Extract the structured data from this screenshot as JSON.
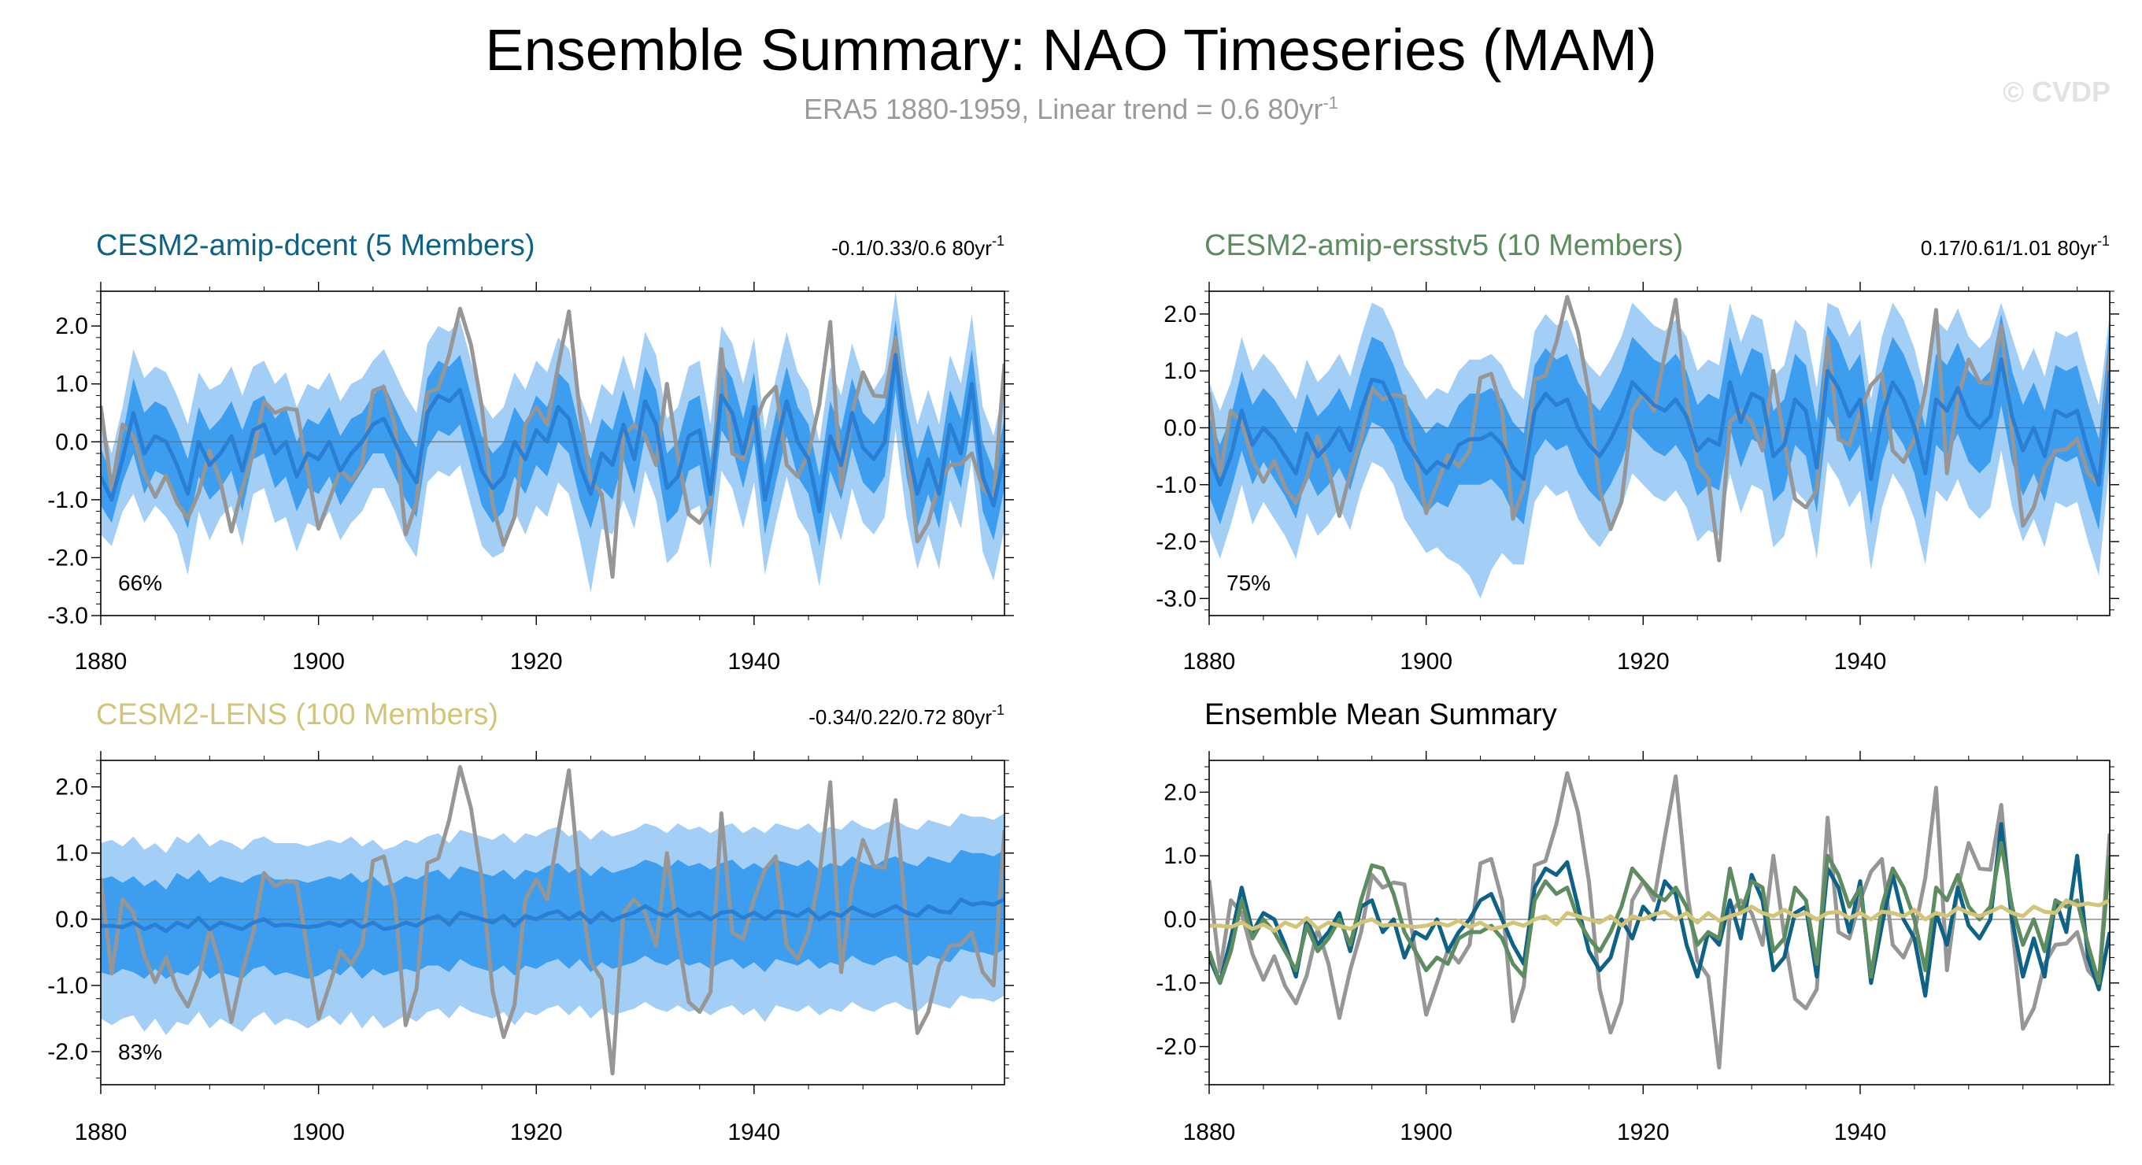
{
  "page": {
    "title": "Ensemble Summary: NAO Timeseries (MAM)",
    "subtitle_main": "ERA5 1880-1959, Linear trend = 0.6 80yr",
    "subtitle_exp": "-1",
    "watermark": "© CVDP"
  },
  "colors": {
    "band_outer": "#a3cef6",
    "band_inner": "#3d9ef0",
    "ens_mean": "#2a7fd4",
    "obs": "#969696",
    "dcent": "#0e6286",
    "ersstv5": "#5c8c60",
    "lens": "#d2c57a"
  },
  "chart_data": [
    {
      "id": "dcent",
      "type": "line",
      "title": "CESM2-amip-dcent (5 Members)",
      "title_color": "#0e6286",
      "trend_range": "-0.1/0.33/0.6 80yr",
      "trend_exp": "-1",
      "percent": "66%",
      "xlim": [
        1880,
        1959
      ],
      "ylim": [
        -3,
        2.6
      ],
      "yticks": [
        -3,
        -2,
        -1,
        0,
        1,
        2
      ],
      "ytick_labels": [
        "-3.0",
        "-2.0",
        "-1.0",
        "0.0",
        "1.0",
        "2.0"
      ],
      "xticks": [
        1880,
        1900,
        1920,
        1940
      ],
      "xtick_labels": [
        "1880",
        "1900",
        "1920",
        "1940"
      ]
    },
    {
      "id": "ersstv5",
      "type": "line",
      "title": "CESM2-amip-ersstv5 (10 Members)",
      "title_color": "#5c8c60",
      "trend_range": "0.17/0.61/1.01 80yr",
      "trend_exp": "-1",
      "percent": "75%",
      "xlim": [
        1880,
        1959
      ],
      "ylim": [
        -3.3,
        2.4
      ],
      "yticks": [
        -3,
        -2,
        -1,
        0,
        1,
        2
      ],
      "ytick_labels": [
        "-3.0",
        "-2.0",
        "-1.0",
        "0.0",
        "1.0",
        "2.0"
      ],
      "xticks": [
        1880,
        1900,
        1920,
        1940
      ],
      "xtick_labels": [
        "1880",
        "1900",
        "1920",
        "1940"
      ]
    },
    {
      "id": "lens",
      "type": "line",
      "title": "CESM2-LENS (100 Members)",
      "title_color": "#d2c57a",
      "trend_range": "-0.34/0.22/0.72 80yr",
      "trend_exp": "-1",
      "percent": "83%",
      "xlim": [
        1880,
        1959
      ],
      "ylim": [
        -2.5,
        2.4
      ],
      "yticks": [
        -2,
        -1,
        0,
        1,
        2
      ],
      "ytick_labels": [
        "-2.0",
        "-1.0",
        "0.0",
        "1.0",
        "2.0"
      ],
      "xticks": [
        1880,
        1900,
        1920,
        1940
      ],
      "xtick_labels": [
        "1880",
        "1900",
        "1920",
        "1940"
      ]
    },
    {
      "id": "summary",
      "type": "line",
      "title": "Ensemble Mean Summary",
      "title_color": "#000000",
      "trend_range": "",
      "trend_exp": "",
      "percent": "",
      "xlim": [
        1880,
        1959
      ],
      "ylim": [
        -2.6,
        2.5
      ],
      "yticks": [
        -2,
        -1,
        0,
        1,
        2
      ],
      "ytick_labels": [
        "-2.0",
        "-1.0",
        "0.0",
        "1.0",
        "2.0"
      ],
      "xticks": [
        1880,
        1900,
        1920,
        1940
      ],
      "xtick_labels": [
        "1880",
        "1900",
        "1920",
        "1940"
      ]
    }
  ],
  "series": {
    "obs": [
      0.62,
      -0.82,
      0.3,
      0.1,
      -0.55,
      -0.95,
      -0.58,
      -1.05,
      -1.32,
      -0.88,
      -0.15,
      -0.7,
      -1.55,
      -0.8,
      -0.2,
      0.7,
      0.5,
      0.58,
      0.55,
      -0.5,
      -1.5,
      -1.0,
      -0.48,
      -0.68,
      -0.4,
      0.88,
      0.95,
      0.3,
      -1.6,
      -1.05,
      0.85,
      0.92,
      1.5,
      2.3,
      1.68,
      0.6,
      -1.1,
      -1.78,
      -1.3,
      0.3,
      0.6,
      0.3,
      1.3,
      2.25,
      0.5,
      -0.65,
      -0.9,
      -2.33,
      0.1,
      0.3,
      0.1,
      -0.4,
      1.0,
      -0.25,
      -1.25,
      -1.4,
      -1.1,
      1.6,
      -0.2,
      -0.3,
      0.3,
      0.75,
      0.95,
      -0.4,
      -0.6,
      -0.2,
      0.65,
      2.07,
      -0.8,
      0.5,
      1.2,
      0.8,
      0.78,
      1.8,
      -0.1,
      -1.72,
      -1.4,
      -0.7,
      -0.4,
      -0.38,
      -0.2,
      -0.8,
      -1.0,
      1.35
    ],
    "dcent_mean": [
      -0.6,
      -1.0,
      -0.3,
      0.5,
      -0.2,
      0.1,
      0.0,
      -0.4,
      -0.9,
      0.0,
      -0.4,
      -0.2,
      0.1,
      -0.5,
      0.2,
      0.3,
      -0.2,
      0.0,
      -0.6,
      -0.2,
      -0.3,
      0.0,
      -0.5,
      -0.2,
      0.0,
      0.3,
      0.4,
      0.0,
      -0.4,
      -0.7,
      0.5,
      0.8,
      0.7,
      0.9,
      0.2,
      -0.5,
      -0.8,
      -0.6,
      0.0,
      -0.3,
      0.2,
      0.0,
      0.6,
      0.4,
      -0.4,
      -0.9,
      -0.2,
      -0.4,
      0.3,
      -0.3,
      0.7,
      0.3,
      -0.8,
      -0.6,
      0.1,
      0.2,
      -0.9,
      0.8,
      0.5,
      -0.2,
      0.6,
      -1.0,
      -0.1,
      0.7,
      0.0,
      -0.3,
      -1.2,
      0.1,
      -0.4,
      0.5,
      -0.1,
      -0.3,
      0.0,
      1.5,
      0.0,
      -0.9,
      -0.3,
      -0.9,
      0.3,
      -0.2,
      1.0,
      -0.6,
      -1.1,
      -0.2
    ],
    "dcent_inner_lo": [
      -1.1,
      -1.4,
      -0.7,
      -0.2,
      -0.9,
      -0.5,
      -0.6,
      -1.0,
      -1.5,
      -0.6,
      -1.0,
      -0.8,
      -0.5,
      -1.2,
      -0.3,
      -0.2,
      -0.8,
      -0.6,
      -1.2,
      -0.8,
      -0.9,
      -0.6,
      -1.1,
      -0.8,
      -0.5,
      -0.2,
      -0.2,
      -0.6,
      -1.0,
      -1.3,
      -0.1,
      0.2,
      0.1,
      0.3,
      -0.4,
      -1.1,
      -1.4,
      -1.2,
      -0.6,
      -0.9,
      -0.4,
      -0.6,
      0.0,
      -0.2,
      -1.0,
      -1.5,
      -0.8,
      -1.0,
      -0.3,
      -0.9,
      0.1,
      -0.3,
      -1.4,
      -1.2,
      -0.5,
      -0.4,
      -1.5,
      0.2,
      -0.1,
      -0.8,
      0.0,
      -1.6,
      -0.7,
      0.1,
      -0.6,
      -0.9,
      -1.8,
      -0.5,
      -1.0,
      -0.1,
      -0.7,
      -0.9,
      -0.6,
      0.9,
      -0.6,
      -1.5,
      -0.9,
      -1.5,
      -0.3,
      -0.8,
      0.4,
      -1.2,
      -1.7,
      -0.8
    ],
    "dcent_inner_hi": [
      -0.1,
      -0.6,
      0.1,
      1.1,
      0.5,
      0.7,
      0.6,
      0.2,
      -0.3,
      0.6,
      0.2,
      0.4,
      0.7,
      0.2,
      0.7,
      0.8,
      0.4,
      0.6,
      0.0,
      0.4,
      0.3,
      0.6,
      0.1,
      0.4,
      0.5,
      0.8,
      1.0,
      0.6,
      0.2,
      -0.1,
      1.1,
      1.4,
      1.3,
      1.5,
      0.8,
      0.1,
      -0.2,
      0.0,
      0.6,
      0.3,
      0.8,
      0.6,
      1.2,
      1.0,
      0.2,
      -0.3,
      0.4,
      0.2,
      0.9,
      0.3,
      1.3,
      0.9,
      -0.2,
      0.0,
      0.7,
      0.8,
      -0.3,
      1.4,
      1.1,
      0.4,
      1.2,
      -0.4,
      0.5,
      1.3,
      0.6,
      0.3,
      -0.6,
      0.7,
      0.2,
      1.1,
      0.5,
      0.3,
      0.6,
      2.1,
      0.6,
      -0.3,
      0.3,
      -0.3,
      0.9,
      0.4,
      1.6,
      0.0,
      -0.5,
      0.4
    ],
    "dcent_outer_lo": [
      -1.6,
      -1.8,
      -1.2,
      -0.9,
      -1.4,
      -1.1,
      -1.3,
      -1.6,
      -2.3,
      -1.2,
      -1.7,
      -1.3,
      -1.1,
      -1.8,
      -0.9,
      -0.8,
      -1.4,
      -1.3,
      -1.9,
      -1.4,
      -1.5,
      -1.2,
      -1.7,
      -1.4,
      -1.2,
      -0.8,
      -0.8,
      -1.2,
      -1.7,
      -2.0,
      -0.7,
      -0.5,
      -0.6,
      -0.4,
      -1.1,
      -1.8,
      -2.0,
      -1.9,
      -1.2,
      -1.6,
      -1.1,
      -1.3,
      -0.7,
      -0.9,
      -1.7,
      -2.6,
      -1.5,
      -1.6,
      -1.0,
      -1.5,
      -0.5,
      -1.0,
      -2.1,
      -1.9,
      -1.2,
      -1.1,
      -2.2,
      -0.5,
      -0.8,
      -1.5,
      -0.7,
      -2.3,
      -1.4,
      -0.6,
      -1.3,
      -1.6,
      -2.5,
      -1.2,
      -1.7,
      -0.8,
      -1.4,
      -1.6,
      -1.3,
      0.2,
      -1.3,
      -2.2,
      -1.6,
      -2.2,
      -1.0,
      -1.5,
      -0.3,
      -1.9,
      -2.4,
      -1.5
    ],
    "dcent_outer_hi": [
      0.4,
      -0.2,
      0.6,
      1.6,
      1.1,
      1.3,
      1.2,
      0.8,
      0.3,
      1.2,
      0.9,
      1.0,
      1.3,
      0.8,
      1.3,
      1.4,
      1.0,
      1.2,
      0.6,
      1.0,
      0.9,
      1.2,
      0.7,
      1.0,
      1.1,
      1.4,
      1.6,
      1.2,
      0.8,
      0.5,
      1.7,
      2.0,
      1.9,
      2.1,
      1.4,
      0.7,
      0.4,
      0.6,
      1.2,
      0.9,
      1.4,
      1.2,
      1.8,
      1.6,
      0.8,
      0.3,
      1.0,
      0.8,
      1.5,
      0.9,
      1.9,
      1.5,
      0.4,
      0.6,
      1.3,
      1.4,
      0.3,
      2.0,
      1.7,
      1.0,
      1.8,
      0.2,
      1.1,
      1.9,
      1.2,
      0.9,
      0.0,
      1.3,
      0.8,
      1.7,
      1.1,
      0.9,
      1.2,
      2.6,
      1.2,
      0.3,
      0.9,
      0.3,
      1.5,
      1.0,
      2.2,
      0.6,
      0.1,
      1.0
    ],
    "ersstv5_mean": [
      -0.5,
      -1.0,
      -0.5,
      0.3,
      -0.3,
      0.0,
      -0.2,
      -0.5,
      -0.8,
      -0.1,
      -0.5,
      -0.3,
      0.0,
      -0.4,
      0.3,
      0.85,
      0.8,
      0.4,
      -0.2,
      -0.5,
      -0.8,
      -0.6,
      -0.7,
      -0.3,
      -0.2,
      -0.2,
      -0.1,
      -0.3,
      -0.7,
      -0.9,
      0.3,
      0.6,
      0.4,
      0.5,
      0.0,
      -0.3,
      -0.5,
      -0.2,
      0.2,
      0.8,
      0.6,
      0.4,
      0.3,
      0.5,
      0.2,
      -0.4,
      -0.2,
      -0.3,
      0.8,
      0.1,
      0.6,
      0.5,
      -0.5,
      -0.3,
      0.5,
      0.3,
      -0.7,
      1.0,
      0.7,
      0.2,
      0.5,
      -0.9,
      0.2,
      0.8,
      0.5,
      0.0,
      -0.8,
      0.5,
      0.3,
      0.7,
      0.2,
      0.0,
      0.2,
      1.2,
      0.2,
      -0.4,
      0.0,
      -0.5,
      0.3,
      0.2,
      0.3,
      -0.4,
      -1.0,
      1.0
    ],
    "ersstv5_inner_lo": [
      -1.2,
      -1.7,
      -1.1,
      -0.4,
      -1.0,
      -0.6,
      -0.9,
      -1.2,
      -1.6,
      -0.8,
      -1.2,
      -1.0,
      -0.7,
      -1.1,
      -0.4,
      0.1,
      0.0,
      -0.3,
      -0.9,
      -1.2,
      -1.5,
      -1.3,
      -1.4,
      -1.0,
      -1.0,
      -1.0,
      -0.9,
      -1.1,
      -1.5,
      -1.7,
      -0.5,
      -0.2,
      -0.4,
      -0.3,
      -0.8,
      -1.1,
      -1.3,
      -1.0,
      -0.6,
      0.0,
      -0.2,
      -0.4,
      -0.5,
      -0.3,
      -0.6,
      -1.2,
      -1.0,
      -1.1,
      0.0,
      -0.7,
      -0.2,
      -0.3,
      -1.3,
      -1.1,
      -0.3,
      -0.5,
      -1.5,
      0.2,
      -0.1,
      -0.6,
      -0.3,
      -1.7,
      -0.6,
      0.0,
      -0.3,
      -0.8,
      -1.6,
      -0.3,
      -0.5,
      -0.1,
      -0.6,
      -0.8,
      -0.6,
      0.4,
      -0.6,
      -1.2,
      -0.8,
      -1.3,
      -0.5,
      -0.6,
      -0.5,
      -1.2,
      -1.8,
      0.2
    ],
    "ersstv5_inner_hi": [
      0.2,
      -0.3,
      0.2,
      1.0,
      0.4,
      0.7,
      0.5,
      0.2,
      -0.1,
      0.6,
      0.2,
      0.4,
      0.7,
      0.3,
      1.0,
      1.6,
      1.5,
      1.1,
      0.5,
      0.2,
      -0.1,
      0.1,
      0.0,
      0.4,
      0.6,
      0.6,
      0.7,
      0.5,
      0.1,
      -0.1,
      1.1,
      1.4,
      1.2,
      1.3,
      0.8,
      0.5,
      0.3,
      0.6,
      1.0,
      1.6,
      1.4,
      1.2,
      1.1,
      1.3,
      1.0,
      0.4,
      0.6,
      0.5,
      1.6,
      0.9,
      1.4,
      1.3,
      0.3,
      0.5,
      1.3,
      1.1,
      0.1,
      1.8,
      1.5,
      1.0,
      1.3,
      -0.1,
      1.0,
      1.6,
      1.3,
      0.8,
      0.0,
      1.3,
      1.1,
      1.5,
      1.0,
      0.8,
      1.0,
      2.0,
      1.0,
      0.4,
      0.8,
      0.3,
      1.1,
      1.0,
      1.1,
      0.4,
      -0.2,
      1.8
    ],
    "ersstv5_outer_lo": [
      -1.8,
      -2.3,
      -1.7,
      -1.0,
      -1.7,
      -1.3,
      -1.6,
      -1.9,
      -2.3,
      -1.5,
      -1.9,
      -1.7,
      -1.4,
      -1.8,
      -1.1,
      -0.6,
      -0.7,
      -1.0,
      -1.6,
      -1.9,
      -2.2,
      -2.1,
      -2.3,
      -2.4,
      -2.6,
      -3.0,
      -2.5,
      -2.2,
      -2.4,
      -2.4,
      -1.3,
      -1.0,
      -1.2,
      -1.1,
      -1.6,
      -1.9,
      -2.1,
      -1.8,
      -1.4,
      -0.8,
      -1.0,
      -1.2,
      -1.3,
      -1.1,
      -1.4,
      -2.0,
      -1.8,
      -1.9,
      -0.8,
      -1.5,
      -1.0,
      -1.1,
      -2.1,
      -1.9,
      -1.1,
      -1.3,
      -2.3,
      -0.6,
      -0.9,
      -1.4,
      -1.1,
      -2.5,
      -1.4,
      -0.8,
      -1.1,
      -1.6,
      -2.4,
      -1.1,
      -1.3,
      -0.9,
      -1.4,
      -1.6,
      -1.4,
      -0.4,
      -1.4,
      -2.0,
      -1.6,
      -2.1,
      -1.3,
      -1.4,
      -1.3,
      -2.0,
      -2.6,
      -0.6
    ],
    "ersstv5_outer_hi": [
      0.8,
      0.3,
      0.8,
      1.6,
      1.0,
      1.3,
      1.1,
      0.8,
      0.5,
      1.2,
      0.8,
      1.0,
      1.3,
      0.9,
      1.6,
      2.2,
      2.1,
      1.7,
      1.1,
      0.8,
      0.5,
      0.7,
      0.6,
      1.0,
      1.2,
      1.2,
      1.3,
      1.1,
      0.7,
      0.5,
      1.7,
      2.0,
      1.8,
      1.9,
      1.4,
      1.1,
      0.9,
      1.2,
      1.6,
      2.2,
      2.0,
      1.8,
      1.7,
      1.9,
      1.6,
      1.0,
      1.2,
      1.1,
      2.2,
      1.5,
      2.0,
      1.9,
      0.9,
      1.1,
      1.9,
      1.7,
      0.7,
      2.2,
      2.1,
      1.6,
      1.9,
      0.5,
      1.6,
      2.2,
      1.9,
      1.4,
      0.6,
      1.9,
      1.7,
      2.1,
      1.6,
      1.4,
      1.6,
      2.2,
      1.6,
      1.0,
      1.4,
      0.9,
      1.7,
      1.6,
      1.7,
      1.0,
      0.4,
      2.0
    ],
    "lens_mean": [
      -0.1,
      -0.1,
      -0.12,
      -0.05,
      -0.15,
      -0.08,
      -0.18,
      -0.05,
      -0.12,
      0.02,
      -0.15,
      -0.05,
      -0.1,
      -0.15,
      -0.05,
      0.0,
      -0.1,
      -0.08,
      -0.1,
      -0.12,
      -0.1,
      -0.05,
      -0.1,
      -0.02,
      -0.12,
      -0.05,
      -0.15,
      -0.12,
      -0.05,
      -0.1,
      0.0,
      0.05,
      -0.08,
      0.1,
      0.05,
      0.0,
      -0.05,
      0.05,
      -0.1,
      0.05,
      0.0,
      0.08,
      0.12,
      0.0,
      0.1,
      -0.05,
      0.1,
      -0.02,
      0.05,
      0.1,
      0.2,
      0.1,
      0.05,
      0.15,
      0.05,
      0.1,
      0.0,
      0.1,
      0.12,
      0.02,
      0.1,
      0.0,
      0.12,
      0.1,
      0.05,
      0.15,
      0.0,
      0.1,
      0.05,
      0.18,
      0.1,
      0.05,
      0.12,
      0.2,
      0.1,
      0.05,
      0.2,
      0.12,
      0.1,
      0.3,
      0.22,
      0.25,
      0.22,
      0.3
    ],
    "lens_inner_lo": [
      -0.8,
      -0.85,
      -0.75,
      -0.8,
      -0.9,
      -0.75,
      -0.9,
      -0.8,
      -0.85,
      -0.7,
      -0.9,
      -0.8,
      -0.85,
      -0.9,
      -0.75,
      -0.7,
      -0.85,
      -0.8,
      -0.85,
      -0.9,
      -0.85,
      -0.75,
      -0.85,
      -0.7,
      -0.9,
      -0.75,
      -0.85,
      -0.8,
      -0.75,
      -0.8,
      -0.7,
      -0.7,
      -0.8,
      -0.6,
      -0.7,
      -0.75,
      -0.8,
      -0.7,
      -0.85,
      -0.7,
      -0.75,
      -0.65,
      -0.6,
      -0.75,
      -0.6,
      -0.8,
      -0.65,
      -0.75,
      -0.7,
      -0.65,
      -0.55,
      -0.65,
      -0.7,
      -0.6,
      -0.7,
      -0.65,
      -0.75,
      -0.65,
      -0.6,
      -0.75,
      -0.65,
      -0.8,
      -0.6,
      -0.65,
      -0.7,
      -0.6,
      -0.75,
      -0.65,
      -0.7,
      -0.55,
      -0.65,
      -0.7,
      -0.6,
      -0.55,
      -0.65,
      -0.7,
      -0.55,
      -0.6,
      -0.65,
      -0.45,
      -0.5,
      -0.5,
      -0.55,
      -0.45
    ],
    "lens_inner_hi": [
      0.6,
      0.65,
      0.55,
      0.65,
      0.5,
      0.6,
      0.45,
      0.7,
      0.6,
      0.75,
      0.55,
      0.65,
      0.6,
      0.55,
      0.65,
      0.7,
      0.6,
      0.6,
      0.6,
      0.55,
      0.6,
      0.65,
      0.6,
      0.7,
      0.55,
      0.65,
      0.5,
      0.55,
      0.65,
      0.6,
      0.7,
      0.75,
      0.6,
      0.8,
      0.75,
      0.7,
      0.65,
      0.75,
      0.6,
      0.75,
      0.7,
      0.8,
      0.85,
      0.7,
      0.8,
      0.65,
      0.8,
      0.7,
      0.75,
      0.8,
      0.9,
      0.85,
      0.75,
      0.9,
      0.8,
      0.85,
      0.75,
      0.85,
      0.9,
      0.75,
      0.85,
      0.75,
      0.9,
      0.85,
      0.8,
      0.9,
      0.75,
      0.85,
      0.8,
      0.95,
      0.85,
      0.8,
      0.9,
      0.95,
      0.85,
      0.8,
      0.95,
      0.9,
      0.85,
      1.05,
      1.0,
      1.0,
      0.95,
      1.05
    ],
    "lens_outer_lo": [
      -1.5,
      -1.6,
      -1.5,
      -1.45,
      -1.7,
      -1.5,
      -1.75,
      -1.55,
      -1.6,
      -1.4,
      -1.65,
      -1.5,
      -1.6,
      -1.7,
      -1.5,
      -1.4,
      -1.6,
      -1.5,
      -1.55,
      -1.65,
      -1.55,
      -1.45,
      -1.6,
      -1.4,
      -1.65,
      -1.45,
      -1.65,
      -1.55,
      -1.45,
      -1.55,
      -1.4,
      -1.35,
      -1.5,
      -1.3,
      -1.4,
      -1.45,
      -1.5,
      -1.4,
      -1.6,
      -1.4,
      -1.45,
      -1.35,
      -1.3,
      -1.45,
      -1.3,
      -1.5,
      -1.35,
      -1.45,
      -1.4,
      -1.35,
      -1.25,
      -1.35,
      -1.4,
      -1.3,
      -1.4,
      -1.35,
      -1.45,
      -1.35,
      -1.3,
      -1.45,
      -1.35,
      -1.55,
      -1.3,
      -1.35,
      -1.4,
      -1.3,
      -1.45,
      -1.35,
      -1.4,
      -1.25,
      -1.35,
      -1.4,
      -1.3,
      -1.25,
      -1.35,
      -1.4,
      -1.25,
      -1.3,
      -1.35,
      -1.15,
      -1.2,
      -1.2,
      -1.25,
      -1.15
    ],
    "lens_outer_hi": [
      1.15,
      1.2,
      1.1,
      1.25,
      1.05,
      1.15,
      1.0,
      1.25,
      1.15,
      1.3,
      1.1,
      1.2,
      1.15,
      1.05,
      1.2,
      1.25,
      1.15,
      1.15,
      1.15,
      1.1,
      1.15,
      1.2,
      1.15,
      1.25,
      1.1,
      1.2,
      1.05,
      1.1,
      1.2,
      1.15,
      1.25,
      1.3,
      1.15,
      1.35,
      1.3,
      1.25,
      1.2,
      1.3,
      1.15,
      1.3,
      1.25,
      1.35,
      1.4,
      1.25,
      1.35,
      1.2,
      1.35,
      1.25,
      1.3,
      1.35,
      1.45,
      1.4,
      1.3,
      1.45,
      1.35,
      1.4,
      1.3,
      1.4,
      1.45,
      1.3,
      1.4,
      1.3,
      1.45,
      1.4,
      1.35,
      1.45,
      1.3,
      1.4,
      1.35,
      1.5,
      1.4,
      1.35,
      1.45,
      1.5,
      1.4,
      1.35,
      1.5,
      1.45,
      1.4,
      1.6,
      1.55,
      1.55,
      1.5,
      1.6
    ]
  }
}
